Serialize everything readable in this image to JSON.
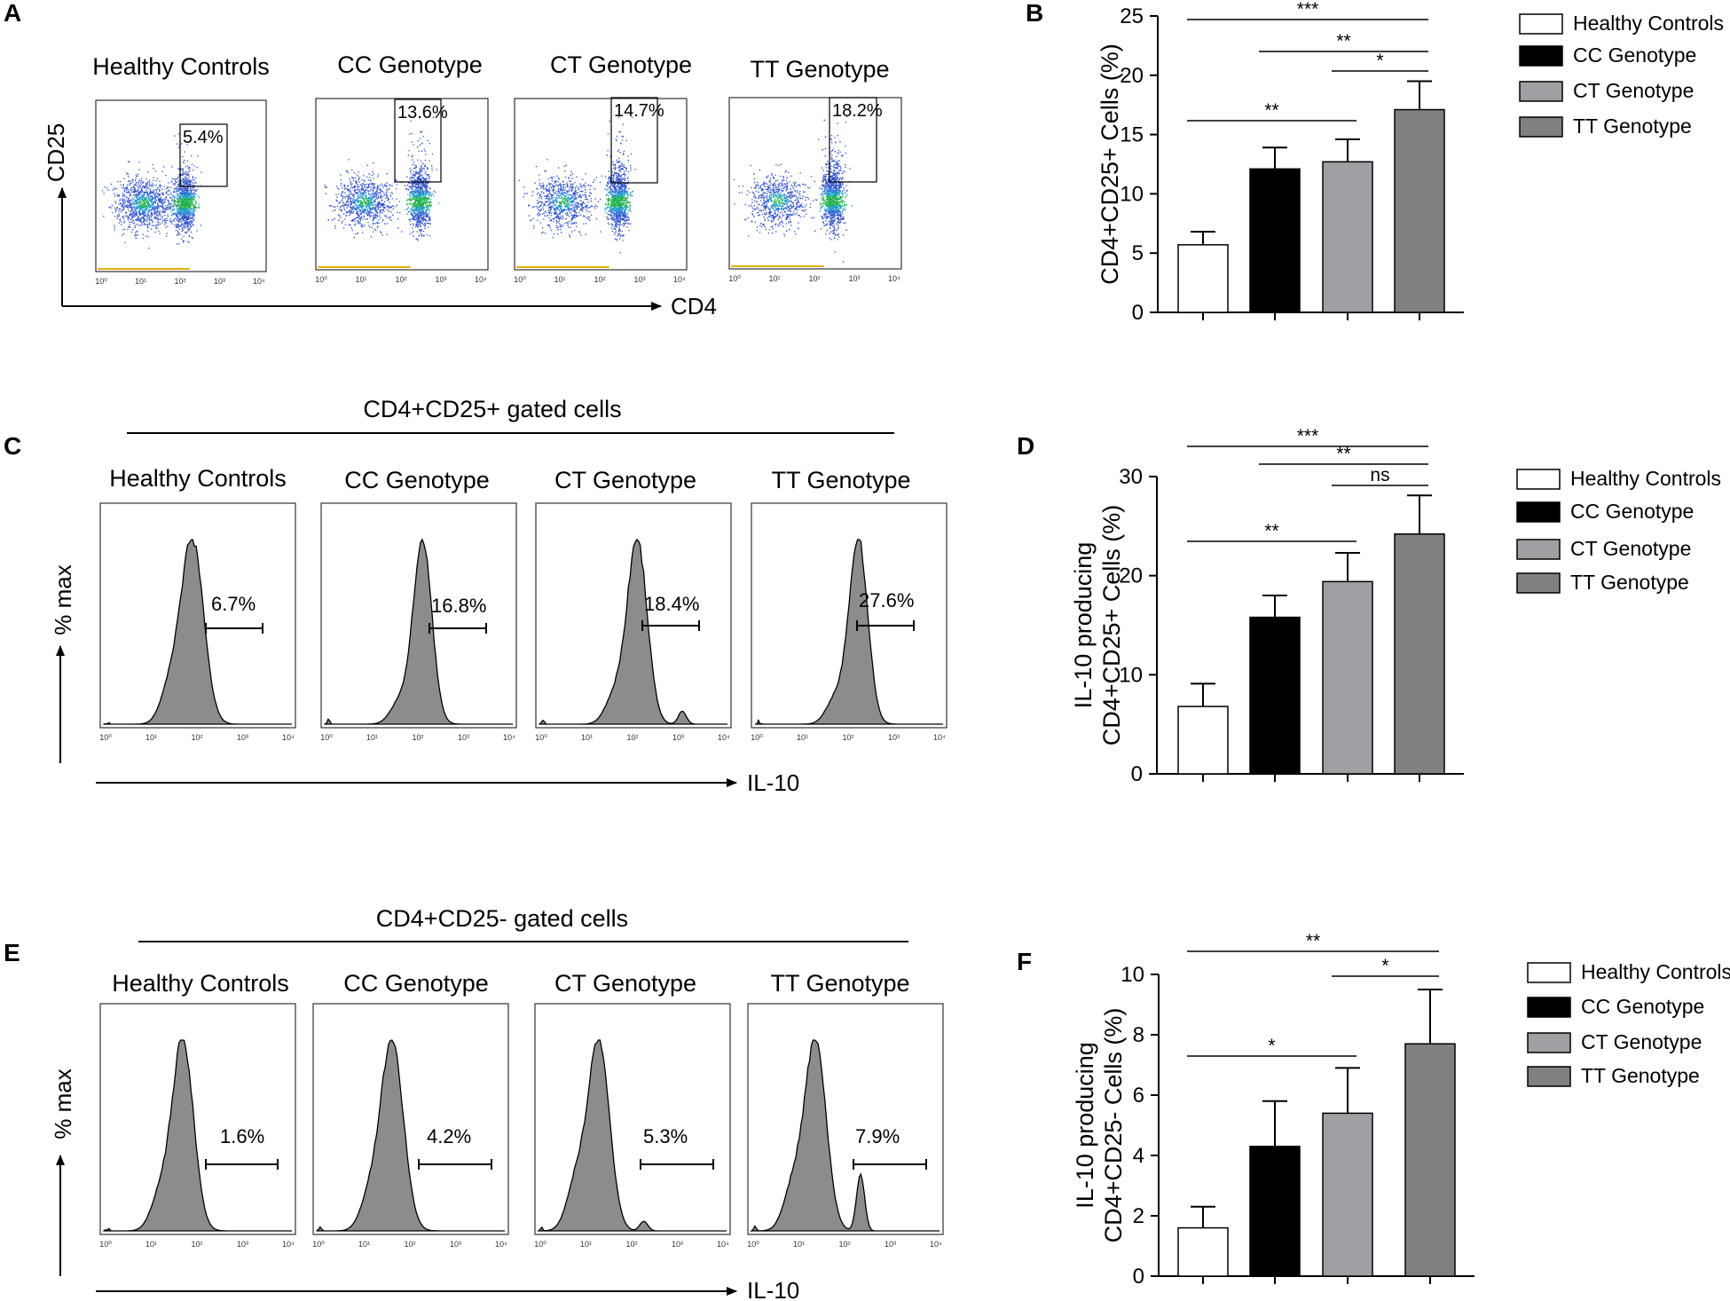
{
  "panel_letters": [
    "A",
    "B",
    "C",
    "D",
    "E",
    "F"
  ],
  "groups": [
    "Healthy Controls",
    "CC Genotype",
    "CT Genotype",
    "TT Genotype"
  ],
  "colors": {
    "healthy": "#ffffff",
    "cc": "#000000",
    "ct": "#a0a0a4",
    "tt": "#808080",
    "hist_fill": "#8c8c8c",
    "axis": "#000000"
  },
  "panel_a": {
    "titles": [
      "Healthy Controls",
      "CC Genotype",
      "CT Genotype",
      "TT Genotype"
    ],
    "gate_labels": [
      "5.4%",
      "13.6%",
      "14.7%",
      "18.2%"
    ],
    "y_axis_label": "CD25",
    "x_axis_label": "CD4",
    "log_ticks": [
      "10⁰",
      "10¹",
      "10²",
      "10³",
      "10⁴"
    ]
  },
  "panel_c": {
    "header": "CD4+CD25+ gated cells",
    "titles": [
      "Healthy Controls",
      "CC Genotype",
      "CT Genotype",
      "TT Genotype"
    ],
    "gate_labels": [
      "6.7%",
      "16.8%",
      "18.4%",
      "27.6%"
    ],
    "y_axis_label": "% max",
    "x_axis_label": "IL-10",
    "log_ticks": [
      "10⁰",
      "10¹",
      "10²",
      "10³",
      "10⁴"
    ]
  },
  "panel_e": {
    "header": "CD4+CD25- gated cells",
    "titles": [
      "Healthy Controls",
      "CC Genotype",
      "CT Genotype",
      "TT Genotype"
    ],
    "gate_labels": [
      "1.6%",
      "4.2%",
      "5.3%",
      "7.9%"
    ],
    "y_axis_label": "% max",
    "x_axis_label": "IL-10",
    "log_ticks": [
      "10⁰",
      "10¹",
      "10²",
      "10³",
      "10⁴"
    ]
  },
  "chart_data": [
    {
      "panel": "B",
      "type": "bar",
      "categories": [
        "Healthy Controls",
        "CC Genotype",
        "CT Genotype",
        "TT Genotype"
      ],
      "values": [
        5.7,
        12.1,
        12.7,
        17.1
      ],
      "errors": [
        1.1,
        1.8,
        1.9,
        2.4
      ],
      "ylabel": "CD4+CD25+ Cells (%)",
      "ylim": [
        0,
        25
      ],
      "yticks": [
        0,
        5,
        10,
        15,
        20,
        25
      ],
      "legend": [
        "Healthy Controls",
        "CC Genotype",
        "CT Genotype",
        "TT Genotype"
      ],
      "legend_position": "right",
      "significance": [
        {
          "from": 0,
          "to": 3,
          "label": "***"
        },
        {
          "from": 1,
          "to": 3,
          "label": "**"
        },
        {
          "from": 2,
          "to": 3,
          "label": "*"
        },
        {
          "from": 0,
          "to": 2,
          "label": "**"
        }
      ]
    },
    {
      "panel": "D",
      "type": "bar",
      "categories": [
        "Healthy Controls",
        "CC Genotype",
        "CT Genotype",
        "TT Genotype"
      ],
      "values": [
        6.8,
        15.8,
        19.4,
        24.2
      ],
      "errors": [
        2.3,
        2.2,
        2.9,
        3.9
      ],
      "ylabel": "IL-10 producing CD4+CD25+ Cells (%)",
      "ylim": [
        0,
        30
      ],
      "yticks": [
        0,
        10,
        20,
        30
      ],
      "legend": [
        "Healthy Controls",
        "CC Genotype",
        "CT Genotype",
        "TT Genotype"
      ],
      "legend_position": "right",
      "significance": [
        {
          "from": 0,
          "to": 3,
          "label": "***"
        },
        {
          "from": 1,
          "to": 3,
          "label": "**"
        },
        {
          "from": 2,
          "to": 3,
          "label": "ns"
        },
        {
          "from": 0,
          "to": 2,
          "label": "**"
        }
      ]
    },
    {
      "panel": "F",
      "type": "bar",
      "categories": [
        "Healthy Controls",
        "CC Genotype",
        "CT Genotype",
        "TT Genotype"
      ],
      "values": [
        1.6,
        4.3,
        5.4,
        7.7
      ],
      "errors": [
        0.7,
        1.5,
        1.5,
        1.8
      ],
      "ylabel": "IL-10 producing CD4+CD25- Cells (%)",
      "ylim": [
        0,
        10
      ],
      "yticks": [
        0,
        2,
        4,
        6,
        8,
        10
      ],
      "legend": [
        "Healthy Controls",
        "CC Genotype",
        "CT Genotype",
        "TT Genotype"
      ],
      "legend_position": "right",
      "significance": [
        {
          "from": 0,
          "to": 3,
          "label": "**"
        },
        {
          "from": 2,
          "to": 3,
          "label": "*"
        },
        {
          "from": 0,
          "to": 2,
          "label": "*"
        }
      ]
    }
  ]
}
